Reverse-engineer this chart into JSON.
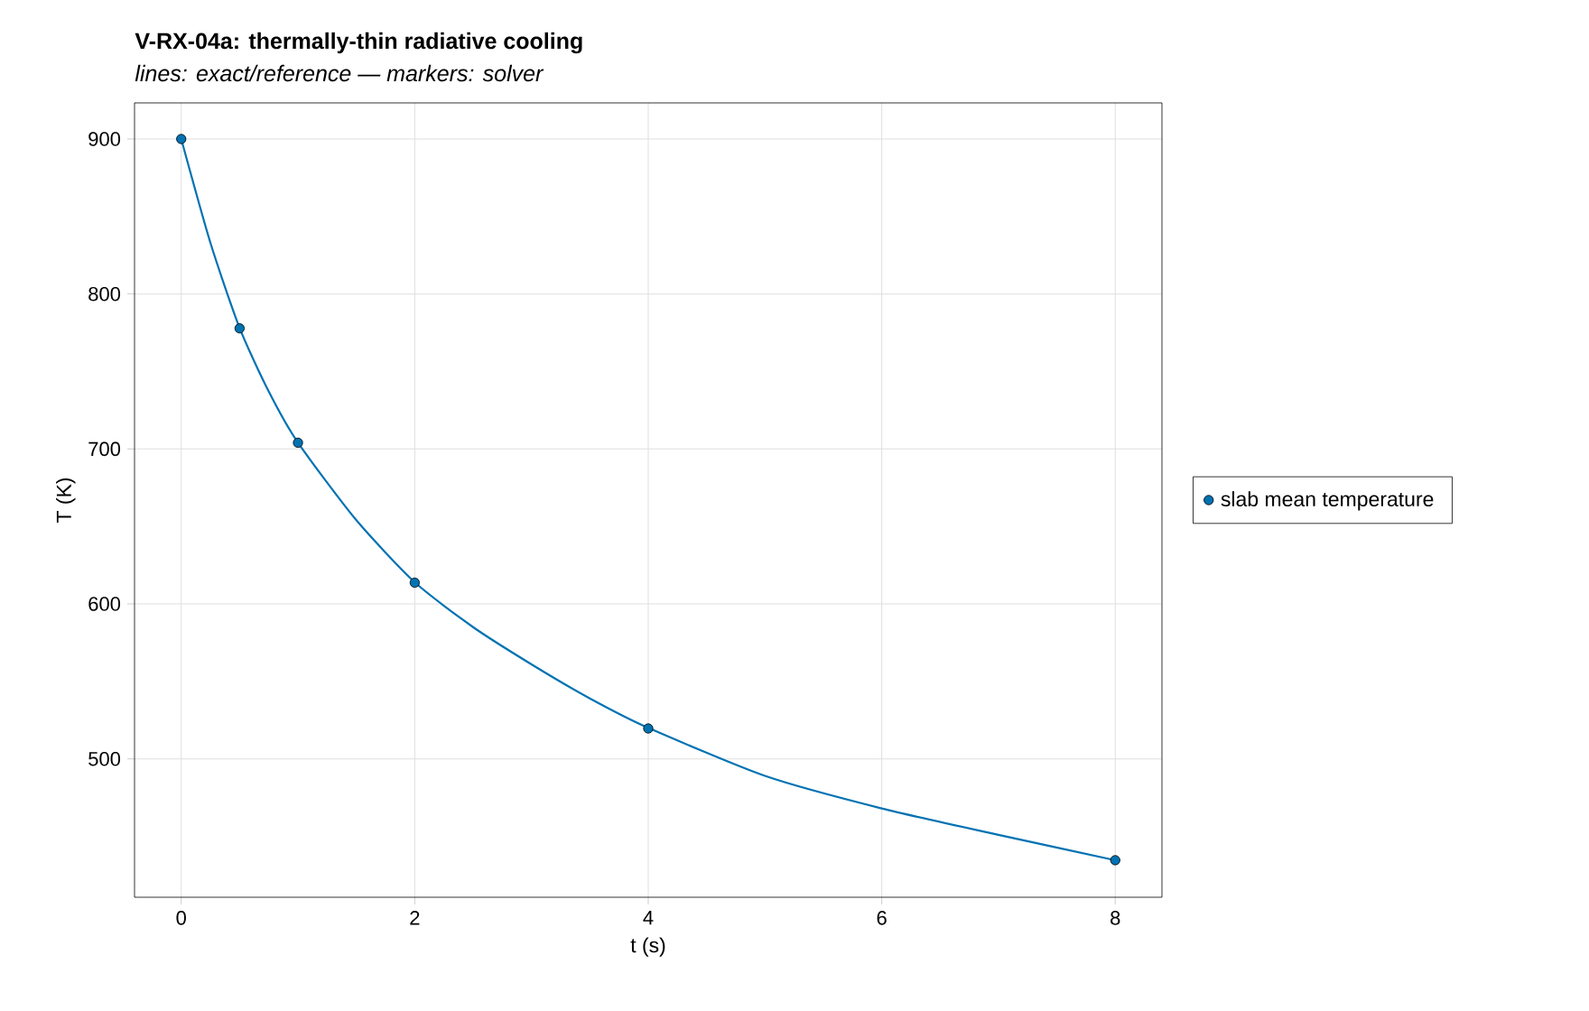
{
  "chart_data": {
    "type": "line",
    "title": "V-RX-04a: thermally-thin radiative cooling",
    "subtitle": "lines: exact/reference — markers: solver",
    "xlabel": "t (s)",
    "ylabel": "T (K)",
    "xlim": [
      -0.4,
      8.4
    ],
    "ylim": [
      410.7,
      923.3
    ],
    "xticks": [
      0,
      2,
      4,
      6,
      8
    ],
    "yticks": [
      500,
      600,
      700,
      800,
      900
    ],
    "grid": true,
    "legend": "right",
    "series": [
      {
        "type": "line",
        "color": "#0072b2",
        "line_style": "solid",
        "x": [
          0,
          0.25,
          0.5,
          0.75,
          1,
          1.5,
          2,
          2.5,
          3,
          3.5,
          4,
          5,
          6,
          7,
          8
        ],
        "values": [
          900,
          833,
          778,
          737,
          704,
          654,
          614,
          585,
          561,
          539,
          520,
          489,
          468,
          451,
          434.6
        ]
      },
      {
        "type": "scatter",
        "name": "slab mean temperature",
        "color": "#0072b2",
        "marker": "circle",
        "x": [
          0,
          0.5,
          1,
          2,
          4,
          8
        ],
        "values": [
          900,
          777.8,
          704,
          613.7,
          519.6,
          434.6
        ]
      }
    ]
  }
}
